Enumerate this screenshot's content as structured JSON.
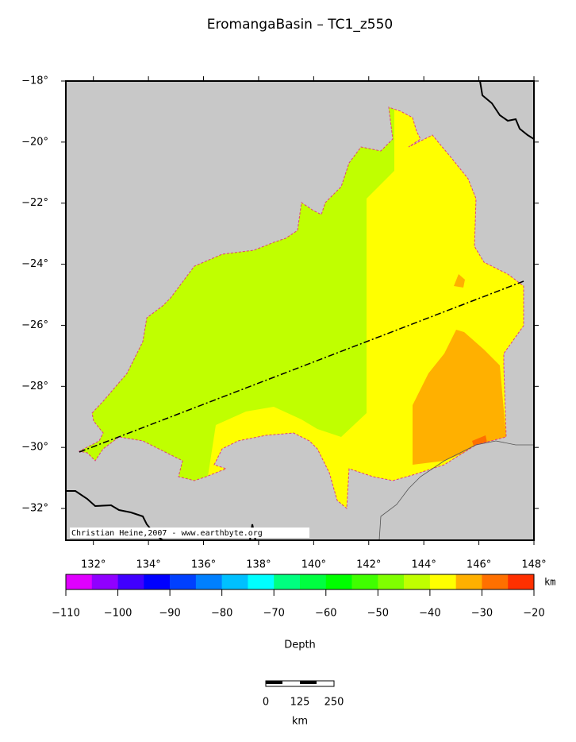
{
  "title": "EromangaBasin – TC1_z550",
  "map": {
    "lonlim": [
      131,
      148
    ],
    "latlim": [
      -33.04,
      -18
    ],
    "lon_ticks": [
      {
        "value": 132,
        "label": "132°"
      },
      {
        "value": 134,
        "label": "134°"
      },
      {
        "value": 136,
        "label": "136°"
      },
      {
        "value": 138,
        "label": "138°"
      },
      {
        "value": 140,
        "label": "140°"
      },
      {
        "value": 142,
        "label": "142°"
      },
      {
        "value": 144,
        "label": "144°"
      },
      {
        "value": 146,
        "label": "146°"
      },
      {
        "value": 148,
        "label": "148°"
      }
    ],
    "lat_ticks": [
      {
        "value": -18,
        "label": "−18°"
      },
      {
        "value": -20,
        "label": "−20°"
      },
      {
        "value": -22,
        "label": "−22°"
      },
      {
        "value": -24,
        "label": "−24°"
      },
      {
        "value": -26,
        "label": "−26°"
      },
      {
        "value": -28,
        "label": "−28°"
      },
      {
        "value": -30,
        "label": "−30°"
      },
      {
        "value": -32,
        "label": "−32°"
      }
    ],
    "credit": "Christian Heine,2007 - www.earthbyte.org"
  },
  "colorbar": {
    "range": [
      -110,
      -20
    ],
    "colors": [
      "#e000ff",
      "#9000ff",
      "#4000ff",
      "#0000ff",
      "#0040ff",
      "#0080ff",
      "#00c0ff",
      "#00ffff",
      "#00ff80",
      "#00ff40",
      "#00ff00",
      "#40ff00",
      "#80ff00",
      "#c0ff00",
      "#ffff00",
      "#ffb000",
      "#ff7000",
      "#ff3000"
    ],
    "ticks": [
      {
        "value": -110,
        "label": "−110"
      },
      {
        "value": -100,
        "label": "−100"
      },
      {
        "value": -90,
        "label": "−90"
      },
      {
        "value": -80,
        "label": "−80"
      },
      {
        "value": -70,
        "label": "−70"
      },
      {
        "value": -60,
        "label": "−60"
      },
      {
        "value": -50,
        "label": "−50"
      },
      {
        "value": -40,
        "label": "−40"
      },
      {
        "value": -30,
        "label": "−30"
      },
      {
        "value": -20,
        "label": "−20"
      }
    ],
    "unit": "km",
    "label": "Depth"
  },
  "scale_bar": {
    "labels": [
      "0",
      "125",
      "250"
    ],
    "unit": "km"
  }
}
